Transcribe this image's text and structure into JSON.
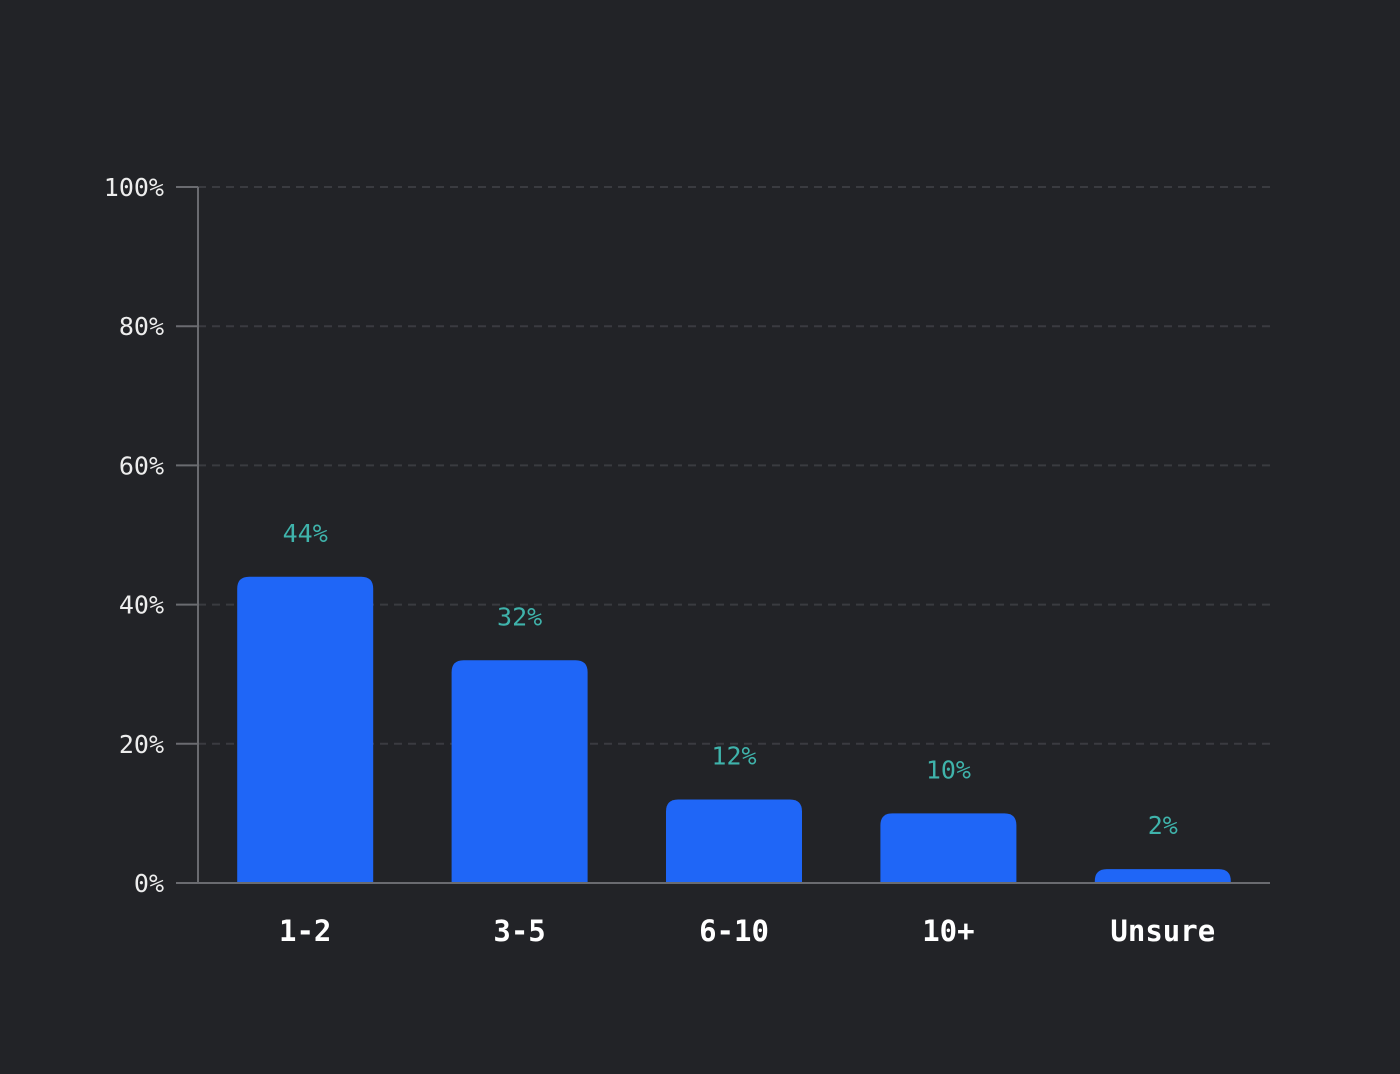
{
  "chart_data": {
    "type": "bar",
    "title": "",
    "xlabel": "",
    "ylabel": "",
    "categories": [
      "1-2",
      "3-5",
      "6-10",
      "10+",
      "Unsure"
    ],
    "values": [
      44,
      32,
      12,
      10,
      2
    ],
    "value_labels": [
      "44%",
      "32%",
      "12%",
      "10%",
      "2%"
    ],
    "ylim": [
      0,
      100
    ],
    "yticks": [
      0,
      20,
      40,
      60,
      80,
      100
    ],
    "ytick_labels": [
      "0%",
      "20%",
      "40%",
      "60%",
      "80%",
      "100%"
    ],
    "grid": true,
    "grid_style": "dashed",
    "legend": "none"
  },
  "colors": {
    "background": "#222327",
    "bar": "#1f66f7",
    "value_label": "#3fb3ab",
    "axis": "#6a6b70",
    "grid": "#3a3b40",
    "tick_text": "#ededed",
    "category_text": "#ffffff"
  }
}
